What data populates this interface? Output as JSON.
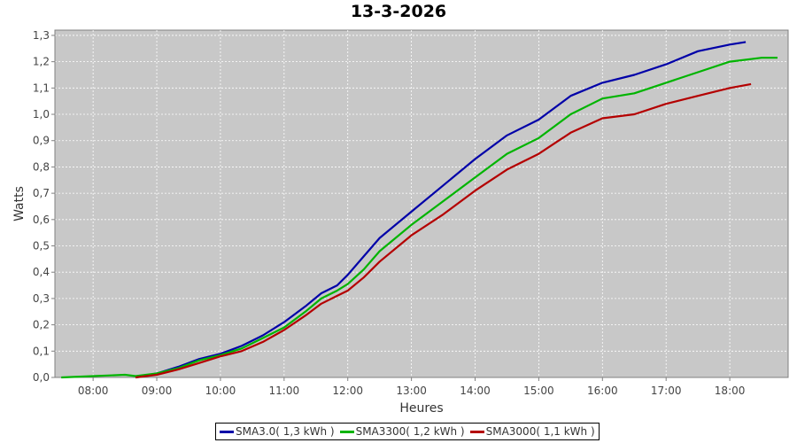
{
  "chart_data": {
    "type": "line",
    "title": "13-3-2026",
    "xlabel": "Heures",
    "ylabel": "Watts",
    "x_ticks": [
      "08:00",
      "09:00",
      "10:00",
      "11:00",
      "12:00",
      "13:00",
      "14:00",
      "15:00",
      "16:00",
      "17:00",
      "18:00"
    ],
    "y_ticks": [
      "0,0",
      "0,1",
      "0,2",
      "0,3",
      "0,4",
      "0,5",
      "0,6",
      "0,7",
      "0,8",
      "0,9",
      "1,0",
      "1,1",
      "1,2",
      "1,3"
    ],
    "xlim": [
      "07:24",
      "18:55"
    ],
    "ylim": [
      0,
      1.32
    ],
    "grid": true,
    "legend_position": "bottom",
    "series": [
      {
        "name": "SMA3.0( 1,3 kWh )",
        "color": "#0000a8",
        "points": [
          [
            "08:40",
            0.0
          ],
          [
            "09:00",
            0.015
          ],
          [
            "09:20",
            0.04
          ],
          [
            "09:40",
            0.07
          ],
          [
            "10:00",
            0.09
          ],
          [
            "10:20",
            0.12
          ],
          [
            "10:40",
            0.16
          ],
          [
            "11:00",
            0.21
          ],
          [
            "11:20",
            0.27
          ],
          [
            "11:35",
            0.32
          ],
          [
            "11:50",
            0.35
          ],
          [
            "12:00",
            0.39
          ],
          [
            "12:15",
            0.46
          ],
          [
            "12:30",
            0.53
          ],
          [
            "13:00",
            0.63
          ],
          [
            "13:30",
            0.73
          ],
          [
            "14:00",
            0.83
          ],
          [
            "14:30",
            0.92
          ],
          [
            "15:00",
            0.98
          ],
          [
            "15:30",
            1.07
          ],
          [
            "16:00",
            1.12
          ],
          [
            "16:30",
            1.15
          ],
          [
            "17:00",
            1.19
          ],
          [
            "17:30",
            1.24
          ],
          [
            "18:00",
            1.265
          ],
          [
            "18:15",
            1.275
          ]
        ]
      },
      {
        "name": "SMA3300( 1,2 kWh )",
        "color": "#00b400",
        "points": [
          [
            "07:30",
            0.0
          ],
          [
            "08:00",
            0.005
          ],
          [
            "08:30",
            0.01
          ],
          [
            "08:40",
            0.005
          ],
          [
            "09:00",
            0.015
          ],
          [
            "09:20",
            0.035
          ],
          [
            "09:40",
            0.065
          ],
          [
            "10:00",
            0.085
          ],
          [
            "10:20",
            0.11
          ],
          [
            "10:40",
            0.15
          ],
          [
            "11:00",
            0.19
          ],
          [
            "11:20",
            0.25
          ],
          [
            "11:35",
            0.3
          ],
          [
            "11:50",
            0.33
          ],
          [
            "12:00",
            0.355
          ],
          [
            "12:15",
            0.41
          ],
          [
            "12:30",
            0.48
          ],
          [
            "13:00",
            0.58
          ],
          [
            "13:30",
            0.67
          ],
          [
            "14:00",
            0.76
          ],
          [
            "14:30",
            0.85
          ],
          [
            "15:00",
            0.91
          ],
          [
            "15:30",
            1.0
          ],
          [
            "16:00",
            1.06
          ],
          [
            "16:30",
            1.08
          ],
          [
            "17:00",
            1.12
          ],
          [
            "17:30",
            1.16
          ],
          [
            "18:00",
            1.2
          ],
          [
            "18:30",
            1.215
          ],
          [
            "18:45",
            1.215
          ]
        ]
      },
      {
        "name": "SMA3000( 1,1 kWh )",
        "color": "#b40000",
        "points": [
          [
            "08:40",
            0.0
          ],
          [
            "09:00",
            0.01
          ],
          [
            "09:20",
            0.03
          ],
          [
            "09:40",
            0.055
          ],
          [
            "10:00",
            0.08
          ],
          [
            "10:20",
            0.1
          ],
          [
            "10:40",
            0.135
          ],
          [
            "11:00",
            0.18
          ],
          [
            "11:20",
            0.235
          ],
          [
            "11:35",
            0.28
          ],
          [
            "11:50",
            0.31
          ],
          [
            "12:00",
            0.33
          ],
          [
            "12:15",
            0.38
          ],
          [
            "12:30",
            0.44
          ],
          [
            "13:00",
            0.54
          ],
          [
            "13:30",
            0.62
          ],
          [
            "14:00",
            0.71
          ],
          [
            "14:30",
            0.79
          ],
          [
            "15:00",
            0.85
          ],
          [
            "15:30",
            0.93
          ],
          [
            "16:00",
            0.985
          ],
          [
            "16:30",
            1.0
          ],
          [
            "17:00",
            1.04
          ],
          [
            "17:30",
            1.07
          ],
          [
            "18:00",
            1.1
          ],
          [
            "18:20",
            1.115
          ]
        ]
      }
    ]
  }
}
